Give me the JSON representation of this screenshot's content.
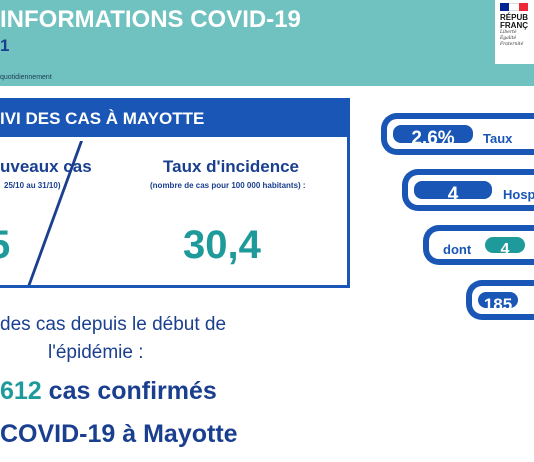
{
  "header": {
    "title": "INFORMATIONS COVID-19",
    "subtitle": "1",
    "note": "quotidiennement"
  },
  "logo": {
    "line1": "RÉPUB",
    "line2": "FRANÇ",
    "motto1": "Liberté",
    "motto2": "Égalité",
    "motto3": "Fraternité",
    "flag_colors": [
      "#002395",
      "#ffffff",
      "#ed2939"
    ]
  },
  "panel": {
    "heading": "IVI DES CAS À MAYOTTE",
    "left_title": "uveaux cas",
    "left_period": "25/10 au 31/10)",
    "left_value": "5",
    "right_title": "Taux d'incidence",
    "right_note": "(nombre de cas pour 100 000 habitants) :",
    "right_value": "30,4"
  },
  "summary": {
    "line1": "des cas depuis le début de",
    "line2": "l'épidémie :",
    "count": "612",
    "count_label": "cas confirmés",
    "line4": "COVID-19 à Mayotte"
  },
  "stats": {
    "pill1_value": "2,6%",
    "pill1_label": "Taux",
    "pill2_value": "4",
    "pill2_label": "Hosp",
    "pill3_prefix": "dont",
    "pill3_value": "4",
    "pill4_value": "185"
  },
  "colors": {
    "header_bg": "#6fc2bf",
    "navy": "#1a3f8f",
    "blue": "#1a56b5",
    "teal": "#1f9a9b"
  }
}
